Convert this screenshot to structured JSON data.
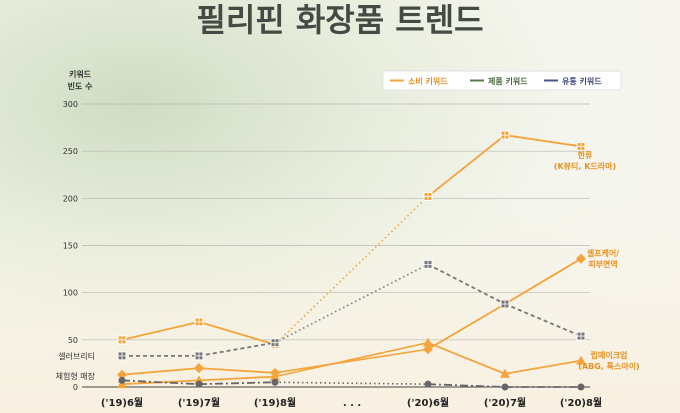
{
  "chart_data": {
    "type": "line",
    "title": "필리핀 화장품 트렌드",
    "ylabel_line1": "키워드",
    "ylabel_line2": "빈도 수",
    "ylim": [
      0,
      300
    ],
    "yticks": [
      0,
      50,
      100,
      150,
      200,
      250,
      300
    ],
    "grid": true,
    "legend_position": "top-right",
    "categories": [
      "('19)6월",
      "('19)7월",
      "('19)8월",
      ". . .",
      "('20)6월",
      "('20)7월",
      "('20)8월"
    ],
    "series": [
      {
        "name": "소비 키워드"
      },
      {
        "name": "제품 키워드"
      },
      {
        "name": "유통 키워드"
      }
    ],
    "lines": [
      {
        "label": "한류",
        "sublabel": "(K뷰티, K드라마)",
        "color": "#f4a43a",
        "marker": "square",
        "values": [
          50,
          69,
          45,
          null,
          202,
          267,
          255
        ],
        "gap_style": "dotted"
      },
      {
        "label": "셀프케어/",
        "sublabel": "피부면역",
        "color": "#f4a43a",
        "marker": "diamond",
        "values": [
          13,
          20,
          15,
          null,
          40,
          88,
          136
        ],
        "gap_style": "solid"
      },
      {
        "label": "립메이크업",
        "sublabel": "(ABG, 톡스아이)",
        "color": "#f4a43a",
        "marker": "triangle",
        "values": [
          3,
          7,
          11,
          null,
          47,
          14,
          28
        ],
        "gap_style": "solid"
      },
      {
        "label": "셀러브리티",
        "color": "#777777",
        "marker": "square",
        "dash": "4,3",
        "values": [
          33,
          33,
          47,
          null,
          130,
          88,
          54
        ],
        "gap_style": "dotted"
      },
      {
        "label": "체험형 매장",
        "color": "#666666",
        "marker": "circle",
        "dash": "8,3,2,3",
        "values": [
          7,
          3,
          5,
          null,
          3,
          0,
          0
        ],
        "gap_style": "dotted"
      }
    ]
  }
}
